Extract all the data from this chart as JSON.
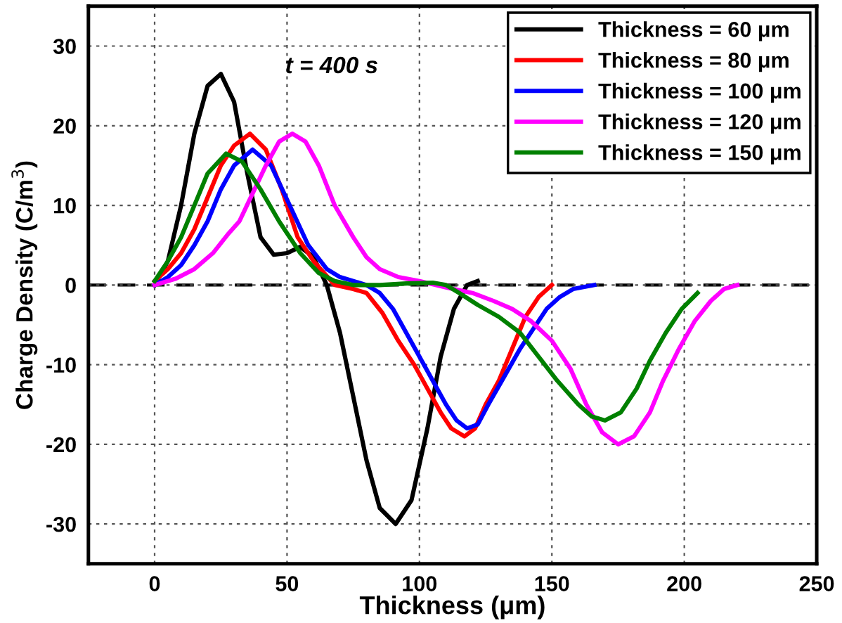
{
  "chart_data": {
    "type": "line",
    "xlabel": "Thickness (μm)",
    "ylabel": "Charge Density (C/m$^{3}$)",
    "annotations": [
      "t = 400 s"
    ],
    "xlim": [
      -25,
      250
    ],
    "xticks": [
      0,
      50,
      100,
      150,
      200,
      250
    ],
    "ylim": [
      -35,
      35
    ],
    "yticks": [
      -30,
      -20,
      -10,
      0,
      10,
      20,
      30
    ],
    "grid": true,
    "legend": "top right",
    "marker": "none",
    "line_style": "solid",
    "ref_lines": [
      {
        "axis": "y",
        "value": 0,
        "color": "#000000",
        "line_style": "dashed"
      }
    ],
    "series": [
      {
        "name": "Thickness = 60 μm",
        "color": "#000000",
        "x": [
          0,
          5,
          10,
          15,
          20,
          25,
          30,
          35,
          40,
          45,
          50,
          55,
          60,
          65,
          70,
          75,
          80,
          85,
          91,
          97,
          103,
          108,
          113,
          118,
          122
        ],
        "values": [
          0,
          3,
          10,
          19,
          25,
          26.5,
          23,
          14,
          6,
          3.8,
          4,
          4.8,
          3.5,
          0,
          -6,
          -14,
          -22,
          -28,
          -30,
          -27,
          -18,
          -9,
          -3,
          0,
          0.5
        ]
      },
      {
        "name": "Thickness = 80 μm",
        "color": "#ff0000",
        "x": [
          0,
          5,
          10,
          15,
          20,
          25,
          30,
          36,
          42,
          48,
          54,
          60,
          68,
          75,
          80,
          86,
          92,
          98,
          103,
          108,
          112,
          117,
          121,
          125,
          130,
          135,
          140,
          145,
          150
        ],
        "values": [
          0.5,
          2,
          4,
          7,
          11,
          15,
          17.5,
          19,
          17,
          12,
          6,
          3,
          0,
          -0.5,
          -1,
          -3.5,
          -7,
          -10,
          -13,
          -16,
          -18,
          -19,
          -18,
          -15,
          -12,
          -8,
          -4,
          -1.5,
          0
        ]
      },
      {
        "name": "Thickness = 100 μm",
        "color": "#0000ff",
        "x": [
          0,
          5,
          10,
          15,
          20,
          25,
          30,
          37,
          44,
          51,
          58,
          65,
          70,
          75,
          80,
          85,
          90,
          95,
          100,
          105,
          110,
          114,
          118,
          122,
          126,
          132,
          138,
          143,
          148,
          153,
          158,
          166
        ],
        "values": [
          0,
          1,
          2.5,
          5,
          8,
          12,
          15,
          17,
          15,
          10,
          5,
          2,
          1,
          0.5,
          0,
          -1,
          -3,
          -6,
          -9,
          -12,
          -15,
          -17,
          -18,
          -17.5,
          -15,
          -11.5,
          -8,
          -5.5,
          -3,
          -1.5,
          -0.5,
          0
        ]
      },
      {
        "name": "Thickness = 120 μm",
        "color": "#ff00ff",
        "x": [
          0,
          8,
          15,
          22,
          28,
          32,
          37,
          42,
          47,
          52,
          57,
          62,
          68,
          75,
          80,
          85,
          92,
          100,
          110,
          120,
          128,
          135,
          142,
          150,
          157,
          163,
          169,
          175,
          181,
          187,
          192,
          198,
          204,
          210,
          215,
          220
        ],
        "values": [
          0,
          0.8,
          2,
          4,
          6.5,
          8,
          11.5,
          15,
          18,
          19,
          18,
          15,
          10,
          6,
          3.5,
          2,
          1,
          0.5,
          -0.3,
          -1,
          -2,
          -3,
          -4.5,
          -7,
          -10.5,
          -15,
          -18.5,
          -20,
          -19,
          -16,
          -12,
          -8,
          -4.5,
          -2,
          -0.5,
          0
        ]
      },
      {
        "name": "Thickness = 150 μm",
        "color": "#008000",
        "x": [
          0,
          5,
          10,
          15,
          20,
          27,
          33,
          40,
          47,
          55,
          62,
          68,
          75,
          85,
          95,
          105,
          110,
          115,
          122,
          130,
          138,
          145,
          152,
          160,
          165,
          170,
          176,
          182,
          187,
          193,
          199,
          205
        ],
        "values": [
          0.5,
          3,
          6,
          10,
          14,
          16.5,
          15.5,
          12,
          8,
          4,
          1.5,
          0.5,
          0,
          0,
          0.2,
          0.3,
          0,
          -1,
          -2.5,
          -4,
          -6,
          -9,
          -12,
          -15,
          -16.5,
          -17,
          -16,
          -13,
          -9.5,
          -6,
          -3,
          -1
        ]
      }
    ]
  }
}
